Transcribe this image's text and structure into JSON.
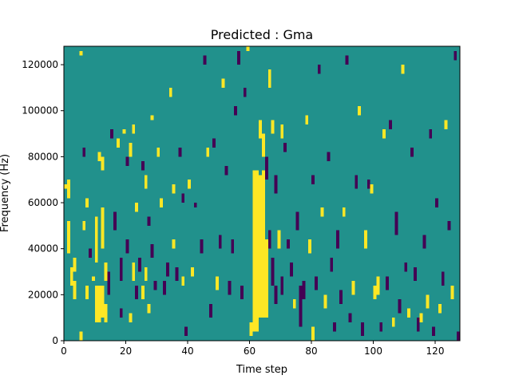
{
  "chart_data": {
    "type": "heatmap",
    "title": "Predicted : Gma",
    "xlabel": "Time step",
    "ylabel": "Frequency (Hz)",
    "xlim": [
      0,
      128
    ],
    "ylim": [
      0,
      128000
    ],
    "xticks": [
      0,
      20,
      40,
      60,
      80,
      100,
      120
    ],
    "xtick_labels": [
      "0",
      "20",
      "40",
      "60",
      "80",
      "100",
      "120"
    ],
    "yticks": [
      0,
      20000,
      40000,
      60000,
      80000,
      100000,
      120000
    ],
    "ytick_labels": [
      "0",
      "20000",
      "40000",
      "60000",
      "80000",
      "100000",
      "120000"
    ],
    "grid": false,
    "colormap": "viridis",
    "background_color": "#21918c",
    "value_colors": {
      "low": "#440154",
      "mid": "#21918c",
      "high": "#fde725"
    },
    "bin_height_hz": 2000,
    "cells": [
      {
        "t": 0,
        "f0": 66000,
        "f1": 68000,
        "v": "high"
      },
      {
        "t": 1,
        "f0": 62000,
        "f1": 70000,
        "v": "high"
      },
      {
        "t": 1,
        "f0": 38000,
        "f1": 52000,
        "v": "high"
      },
      {
        "t": 2,
        "f0": 24000,
        "f1": 32000,
        "v": "high"
      },
      {
        "t": 3,
        "f0": 18000,
        "f1": 26000,
        "v": "high"
      },
      {
        "t": 3,
        "f0": 30000,
        "f1": 36000,
        "v": "high"
      },
      {
        "t": 5,
        "f0": 0,
        "f1": 4000,
        "v": "high"
      },
      {
        "t": 5,
        "f0": 124000,
        "f1": 126000,
        "v": "high"
      },
      {
        "t": 6,
        "f0": 48000,
        "f1": 52000,
        "v": "high"
      },
      {
        "t": 6,
        "f0": 80000,
        "f1": 84000,
        "v": "low"
      },
      {
        "t": 7,
        "f0": 18000,
        "f1": 24000,
        "v": "high"
      },
      {
        "t": 7,
        "f0": 58000,
        "f1": 62000,
        "v": "high"
      },
      {
        "t": 8,
        "f0": 36000,
        "f1": 40000,
        "v": "low"
      },
      {
        "t": 9,
        "f0": 26000,
        "f1": 28000,
        "v": "high"
      },
      {
        "t": 10,
        "f0": 34000,
        "f1": 54000,
        "v": "high"
      },
      {
        "t": 10,
        "f0": 8000,
        "f1": 24000,
        "v": "high"
      },
      {
        "t": 11,
        "f0": 8000,
        "f1": 24000,
        "v": "high"
      },
      {
        "t": 11,
        "f0": 78000,
        "f1": 82000,
        "v": "high"
      },
      {
        "t": 12,
        "f0": 10000,
        "f1": 24000,
        "v": "high"
      },
      {
        "t": 12,
        "f0": 40000,
        "f1": 58000,
        "v": "high"
      },
      {
        "t": 12,
        "f0": 74000,
        "f1": 80000,
        "v": "high"
      },
      {
        "t": 13,
        "f0": 8000,
        "f1": 16000,
        "v": "high"
      },
      {
        "t": 13,
        "f0": 26000,
        "f1": 34000,
        "v": "high"
      },
      {
        "t": 14,
        "f0": 20000,
        "f1": 30000,
        "v": "low"
      },
      {
        "t": 15,
        "f0": 88000,
        "f1": 92000,
        "v": "low"
      },
      {
        "t": 16,
        "f0": 48000,
        "f1": 56000,
        "v": "low"
      },
      {
        "t": 17,
        "f0": 84000,
        "f1": 88000,
        "v": "high"
      },
      {
        "t": 18,
        "f0": 10000,
        "f1": 14000,
        "v": "low"
      },
      {
        "t": 18,
        "f0": 26000,
        "f1": 36000,
        "v": "low"
      },
      {
        "t": 19,
        "f0": 90000,
        "f1": 92000,
        "v": "high"
      },
      {
        "t": 20,
        "f0": 38000,
        "f1": 44000,
        "v": "low"
      },
      {
        "t": 20,
        "f0": 76000,
        "f1": 80000,
        "v": "low"
      },
      {
        "t": 21,
        "f0": 8000,
        "f1": 12000,
        "v": "high"
      },
      {
        "t": 21,
        "f0": 80000,
        "f1": 86000,
        "v": "high"
      },
      {
        "t": 22,
        "f0": 26000,
        "f1": 34000,
        "v": "high"
      },
      {
        "t": 22,
        "f0": 90000,
        "f1": 94000,
        "v": "high"
      },
      {
        "t": 23,
        "f0": 18000,
        "f1": 24000,
        "v": "low"
      },
      {
        "t": 23,
        "f0": 56000,
        "f1": 60000,
        "v": "high"
      },
      {
        "t": 24,
        "f0": 30000,
        "f1": 36000,
        "v": "low"
      },
      {
        "t": 25,
        "f0": 18000,
        "f1": 24000,
        "v": "high"
      },
      {
        "t": 25,
        "f0": 74000,
        "f1": 78000,
        "v": "low"
      },
      {
        "t": 26,
        "f0": 26000,
        "f1": 32000,
        "v": "high"
      },
      {
        "t": 26,
        "f0": 66000,
        "f1": 72000,
        "v": "high"
      },
      {
        "t": 27,
        "f0": 12000,
        "f1": 16000,
        "v": "high"
      },
      {
        "t": 27,
        "f0": 50000,
        "f1": 54000,
        "v": "low"
      },
      {
        "t": 28,
        "f0": 36000,
        "f1": 42000,
        "v": "low"
      },
      {
        "t": 28,
        "f0": 96000,
        "f1": 98000,
        "v": "high"
      },
      {
        "t": 29,
        "f0": 22000,
        "f1": 26000,
        "v": "low"
      },
      {
        "t": 30,
        "f0": 80000,
        "f1": 84000,
        "v": "high"
      },
      {
        "t": 31,
        "f0": 58000,
        "f1": 62000,
        "v": "high"
      },
      {
        "t": 32,
        "f0": 20000,
        "f1": 26000,
        "v": "low"
      },
      {
        "t": 33,
        "f0": 28000,
        "f1": 34000,
        "v": "low"
      },
      {
        "t": 34,
        "f0": 106000,
        "f1": 110000,
        "v": "high"
      },
      {
        "t": 35,
        "f0": 40000,
        "f1": 44000,
        "v": "high"
      },
      {
        "t": 35,
        "f0": 64000,
        "f1": 68000,
        "v": "high"
      },
      {
        "t": 36,
        "f0": 26000,
        "f1": 32000,
        "v": "low"
      },
      {
        "t": 37,
        "f0": 80000,
        "f1": 84000,
        "v": "low"
      },
      {
        "t": 38,
        "f0": 24000,
        "f1": 28000,
        "v": "high"
      },
      {
        "t": 38,
        "f0": 60000,
        "f1": 64000,
        "v": "low"
      },
      {
        "t": 39,
        "f0": 2000,
        "f1": 6000,
        "v": "low"
      },
      {
        "t": 40,
        "f0": 66000,
        "f1": 70000,
        "v": "high"
      },
      {
        "t": 41,
        "f0": 28000,
        "f1": 32000,
        "v": "high"
      },
      {
        "t": 42,
        "f0": 58000,
        "f1": 60000,
        "v": "low"
      },
      {
        "t": 44,
        "f0": 38000,
        "f1": 44000,
        "v": "low"
      },
      {
        "t": 45,
        "f0": 120000,
        "f1": 124000,
        "v": "low"
      },
      {
        "t": 46,
        "f0": 80000,
        "f1": 84000,
        "v": "high"
      },
      {
        "t": 47,
        "f0": 10000,
        "f1": 16000,
        "v": "low"
      },
      {
        "t": 48,
        "f0": 84000,
        "f1": 88000,
        "v": "low"
      },
      {
        "t": 49,
        "f0": 22000,
        "f1": 28000,
        "v": "high"
      },
      {
        "t": 50,
        "f0": 40000,
        "f1": 46000,
        "v": "low"
      },
      {
        "t": 51,
        "f0": 110000,
        "f1": 114000,
        "v": "high"
      },
      {
        "t": 52,
        "f0": 72000,
        "f1": 76000,
        "v": "low"
      },
      {
        "t": 53,
        "f0": 20000,
        "f1": 26000,
        "v": "low"
      },
      {
        "t": 54,
        "f0": 38000,
        "f1": 44000,
        "v": "low"
      },
      {
        "t": 55,
        "f0": 98000,
        "f1": 102000,
        "v": "low"
      },
      {
        "t": 56,
        "f0": 120000,
        "f1": 126000,
        "v": "low"
      },
      {
        "t": 57,
        "f0": 18000,
        "f1": 24000,
        "v": "low"
      },
      {
        "t": 58,
        "f0": 106000,
        "f1": 110000,
        "v": "low"
      },
      {
        "t": 59,
        "f0": 126000,
        "f1": 128000,
        "v": "high"
      },
      {
        "t": 60,
        "f0": 2000,
        "f1": 8000,
        "v": "high"
      },
      {
        "t": 61,
        "f0": 4000,
        "f1": 74000,
        "v": "high"
      },
      {
        "t": 62,
        "f0": 4000,
        "f1": 74000,
        "v": "high"
      },
      {
        "t": 63,
        "f0": 10000,
        "f1": 72000,
        "v": "high"
      },
      {
        "t": 63,
        "f0": 88000,
        "f1": 96000,
        "v": "high"
      },
      {
        "t": 64,
        "f0": 10000,
        "f1": 74000,
        "v": "high"
      },
      {
        "t": 64,
        "f0": 80000,
        "f1": 90000,
        "v": "high"
      },
      {
        "t": 65,
        "f0": 10000,
        "f1": 44000,
        "v": "high"
      },
      {
        "t": 65,
        "f0": 70000,
        "f1": 80000,
        "v": "low"
      },
      {
        "t": 66,
        "f0": 40000,
        "f1": 48000,
        "v": "low"
      },
      {
        "t": 66,
        "f0": 110000,
        "f1": 118000,
        "v": "high"
      },
      {
        "t": 67,
        "f0": 24000,
        "f1": 36000,
        "v": "low"
      },
      {
        "t": 67,
        "f0": 90000,
        "f1": 96000,
        "v": "high"
      },
      {
        "t": 68,
        "f0": 16000,
        "f1": 24000,
        "v": "low"
      },
      {
        "t": 68,
        "f0": 64000,
        "f1": 72000,
        "v": "low"
      },
      {
        "t": 69,
        "f0": 40000,
        "f1": 48000,
        "v": "high"
      },
      {
        "t": 70,
        "f0": 20000,
        "f1": 28000,
        "v": "low"
      },
      {
        "t": 70,
        "f0": 88000,
        "f1": 94000,
        "v": "high"
      },
      {
        "t": 71,
        "f0": 82000,
        "f1": 86000,
        "v": "low"
      },
      {
        "t": 72,
        "f0": 40000,
        "f1": 44000,
        "v": "low"
      },
      {
        "t": 73,
        "f0": 28000,
        "f1": 34000,
        "v": "low"
      },
      {
        "t": 74,
        "f0": 14000,
        "f1": 18000,
        "v": "high"
      },
      {
        "t": 75,
        "f0": 48000,
        "f1": 56000,
        "v": "low"
      },
      {
        "t": 76,
        "f0": 6000,
        "f1": 24000,
        "v": "low"
      },
      {
        "t": 77,
        "f0": 18000,
        "f1": 26000,
        "v": "low"
      },
      {
        "t": 78,
        "f0": 94000,
        "f1": 98000,
        "v": "high"
      },
      {
        "t": 79,
        "f0": 38000,
        "f1": 44000,
        "v": "high"
      },
      {
        "t": 80,
        "f0": 0,
        "f1": 6000,
        "v": "high"
      },
      {
        "t": 80,
        "f0": 68000,
        "f1": 72000,
        "v": "low"
      },
      {
        "t": 81,
        "f0": 22000,
        "f1": 28000,
        "v": "low"
      },
      {
        "t": 82,
        "f0": 116000,
        "f1": 120000,
        "v": "low"
      },
      {
        "t": 83,
        "f0": 54000,
        "f1": 58000,
        "v": "high"
      },
      {
        "t": 84,
        "f0": 14000,
        "f1": 20000,
        "v": "high"
      },
      {
        "t": 85,
        "f0": 78000,
        "f1": 82000,
        "v": "low"
      },
      {
        "t": 86,
        "f0": 30000,
        "f1": 36000,
        "v": "low"
      },
      {
        "t": 87,
        "f0": 4000,
        "f1": 8000,
        "v": "low"
      },
      {
        "t": 88,
        "f0": 40000,
        "f1": 48000,
        "v": "low"
      },
      {
        "t": 89,
        "f0": 16000,
        "f1": 22000,
        "v": "low"
      },
      {
        "t": 90,
        "f0": 54000,
        "f1": 58000,
        "v": "high"
      },
      {
        "t": 91,
        "f0": 120000,
        "f1": 124000,
        "v": "low"
      },
      {
        "t": 92,
        "f0": 8000,
        "f1": 12000,
        "v": "low"
      },
      {
        "t": 93,
        "f0": 20000,
        "f1": 26000,
        "v": "high"
      },
      {
        "t": 94,
        "f0": 66000,
        "f1": 72000,
        "v": "low"
      },
      {
        "t": 95,
        "f0": 98000,
        "f1": 102000,
        "v": "high"
      },
      {
        "t": 96,
        "f0": 2000,
        "f1": 8000,
        "v": "low"
      },
      {
        "t": 97,
        "f0": 40000,
        "f1": 48000,
        "v": "high"
      },
      {
        "t": 98,
        "f0": 66000,
        "f1": 70000,
        "v": "low"
      },
      {
        "t": 99,
        "f0": 64000,
        "f1": 68000,
        "v": "high"
      },
      {
        "t": 100,
        "f0": 18000,
        "f1": 24000,
        "v": "high"
      },
      {
        "t": 101,
        "f0": 20000,
        "f1": 28000,
        "v": "high"
      },
      {
        "t": 102,
        "f0": 4000,
        "f1": 8000,
        "v": "low"
      },
      {
        "t": 103,
        "f0": 88000,
        "f1": 92000,
        "v": "high"
      },
      {
        "t": 104,
        "f0": 22000,
        "f1": 28000,
        "v": "low"
      },
      {
        "t": 105,
        "f0": 92000,
        "f1": 96000,
        "v": "low"
      },
      {
        "t": 106,
        "f0": 6000,
        "f1": 10000,
        "v": "high"
      },
      {
        "t": 107,
        "f0": 46000,
        "f1": 56000,
        "v": "low"
      },
      {
        "t": 108,
        "f0": 12000,
        "f1": 18000,
        "v": "low"
      },
      {
        "t": 109,
        "f0": 116000,
        "f1": 120000,
        "v": "high"
      },
      {
        "t": 110,
        "f0": 30000,
        "f1": 34000,
        "v": "low"
      },
      {
        "t": 111,
        "f0": 10000,
        "f1": 14000,
        "v": "high"
      },
      {
        "t": 112,
        "f0": 80000,
        "f1": 84000,
        "v": "low"
      },
      {
        "t": 113,
        "f0": 26000,
        "f1": 32000,
        "v": "low"
      },
      {
        "t": 114,
        "f0": 4000,
        "f1": 10000,
        "v": "low"
      },
      {
        "t": 115,
        "f0": 8000,
        "f1": 12000,
        "v": "high"
      },
      {
        "t": 116,
        "f0": 40000,
        "f1": 46000,
        "v": "low"
      },
      {
        "t": 117,
        "f0": 14000,
        "f1": 20000,
        "v": "high"
      },
      {
        "t": 118,
        "f0": 88000,
        "f1": 92000,
        "v": "low"
      },
      {
        "t": 119,
        "f0": 2000,
        "f1": 6000,
        "v": "low"
      },
      {
        "t": 120,
        "f0": 58000,
        "f1": 62000,
        "v": "low"
      },
      {
        "t": 121,
        "f0": 12000,
        "f1": 16000,
        "v": "high"
      },
      {
        "t": 122,
        "f0": 24000,
        "f1": 30000,
        "v": "low"
      },
      {
        "t": 123,
        "f0": 92000,
        "f1": 96000,
        "v": "high"
      },
      {
        "t": 124,
        "f0": 48000,
        "f1": 52000,
        "v": "low"
      },
      {
        "t": 125,
        "f0": 18000,
        "f1": 24000,
        "v": "high"
      },
      {
        "t": 126,
        "f0": 122000,
        "f1": 126000,
        "v": "low"
      },
      {
        "t": 127,
        "f0": 0,
        "f1": 4000,
        "v": "low"
      }
    ]
  }
}
